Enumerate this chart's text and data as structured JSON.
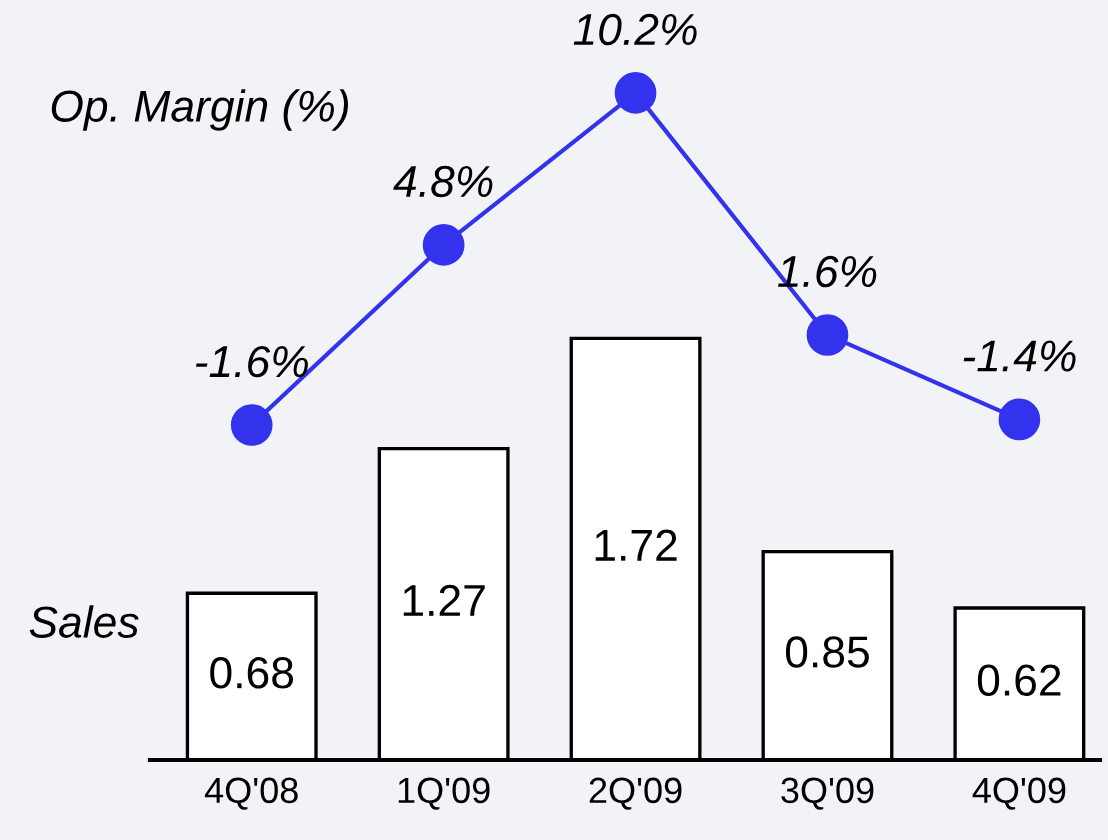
{
  "chart_data": {
    "type": "bar",
    "categories": [
      "4Q'08",
      "1Q'09",
      "2Q'09",
      "3Q'09",
      "4Q'09"
    ],
    "ylabel": "Sales",
    "y2label": "Op. Margin (%)",
    "ylim": [
      0,
      3.1
    ],
    "y2lim": [
      -13.5,
      13.5
    ],
    "tick_labels": "x",
    "grid": false,
    "legend": false,
    "series": [
      {
        "color": "#ffffff",
        "values": [
          0.68,
          1.27,
          1.72,
          0.85,
          0.62
        ],
        "data_labels": true
      },
      {
        "type": "line",
        "axis": "y2",
        "color": "#3333ee",
        "marker": "circle",
        "line_style": "solid",
        "values": [
          -1.6,
          4.8,
          10.2,
          1.6,
          -1.4
        ],
        "value_labels": [
          "-1.6%",
          "4.8%",
          "10.2%",
          "1.6%",
          "-1.4%"
        ]
      }
    ]
  }
}
